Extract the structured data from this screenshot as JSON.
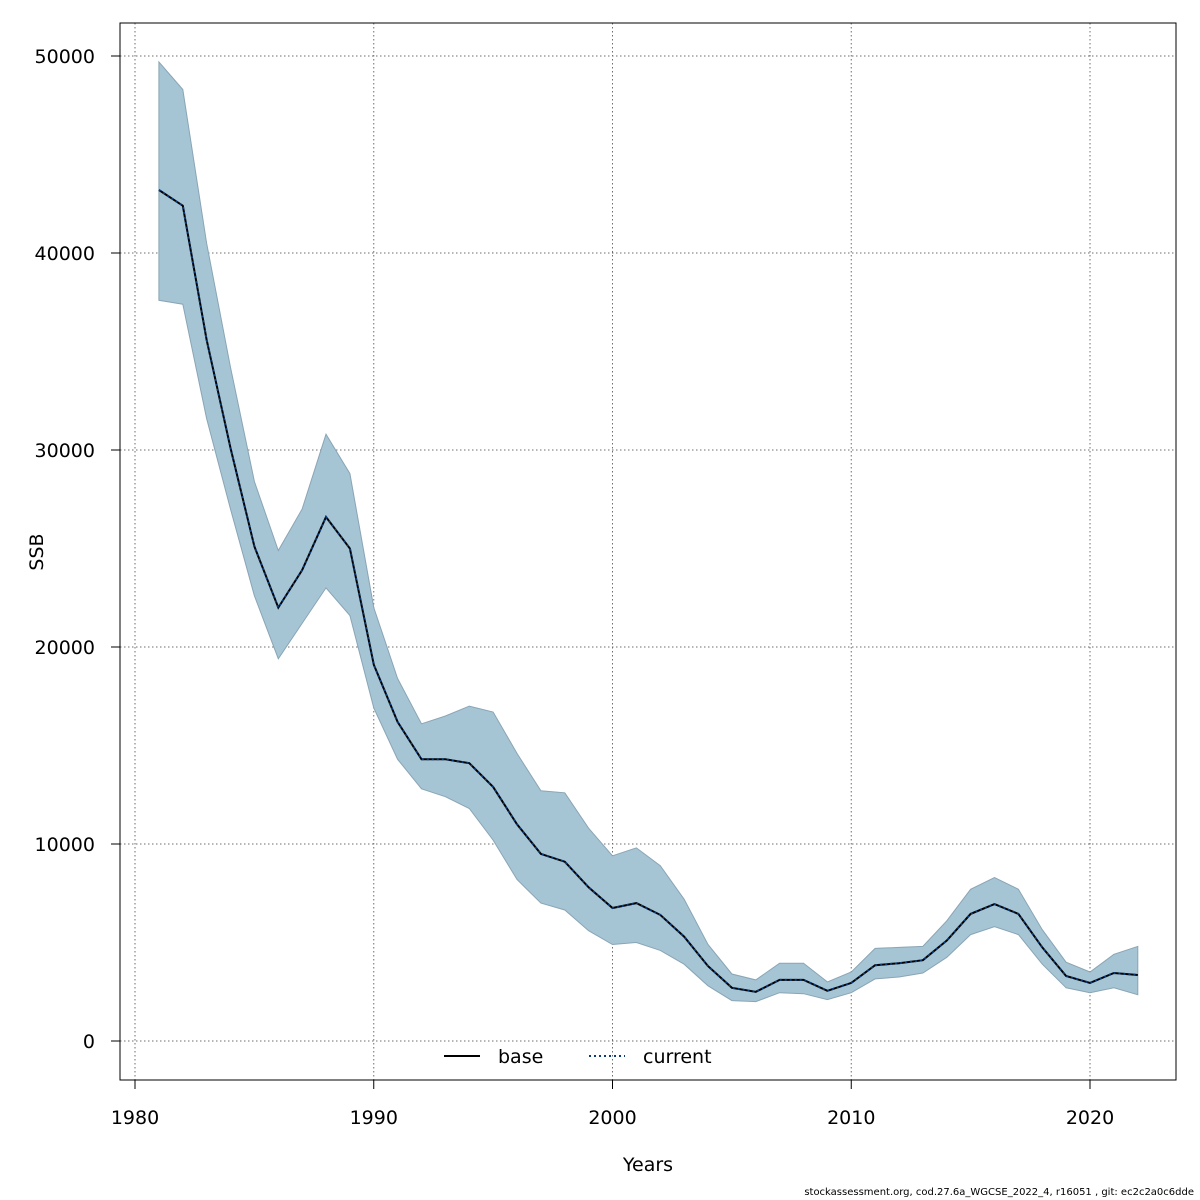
{
  "footer": "stockassessment.org, cod.27.6a_WGCSE_2022_4, r16051 , git: ec2c2a0c6dde",
  "chart_data": {
    "type": "line",
    "title": "",
    "xlabel": "Years",
    "ylabel": "SSB",
    "xlim": [
      1980,
      2023
    ],
    "ylim": [
      0,
      50000
    ],
    "xticks": [
      1980,
      1990,
      2000,
      2010,
      2020
    ],
    "yticks": [
      0,
      10000,
      20000,
      30000,
      40000,
      50000
    ],
    "grid": true,
    "legend_position": "bottom-center",
    "band_color": "#a5c4d4",
    "band_edge_color": "#8aa5b5",
    "x": [
      1981,
      1982,
      1983,
      1984,
      1985,
      1986,
      1987,
      1988,
      1989,
      1990,
      1991,
      1992,
      1993,
      1994,
      1995,
      1996,
      1997,
      1998,
      1999,
      2000,
      2001,
      2002,
      2003,
      2004,
      2005,
      2006,
      2007,
      2008,
      2009,
      2010,
      2011,
      2012,
      2013,
      2014,
      2015,
      2016,
      2017,
      2018,
      2019,
      2020,
      2021,
      2022
    ],
    "band": {
      "upper": [
        49700,
        48300,
        40500,
        34200,
        28400,
        24900,
        27000,
        30800,
        28800,
        22000,
        18400,
        16100,
        16500,
        17000,
        16700,
        14600,
        12700,
        12600,
        10800,
        9400,
        9800,
        8900,
        7200,
        4900,
        3400,
        3100,
        3950,
        3950,
        3000,
        3500,
        4700,
        4750,
        4800,
        6100,
        7700,
        8300,
        7700,
        5650,
        4000,
        3500,
        4400,
        4800
      ],
      "lower": [
        37600,
        37400,
        31600,
        27000,
        22600,
        19400,
        21200,
        23000,
        21600,
        16900,
        14300,
        12800,
        12400,
        11800,
        10200,
        8200,
        7000,
        6650,
        5600,
        4900,
        5000,
        4600,
        3900,
        2800,
        2050,
        2000,
        2450,
        2400,
        2100,
        2450,
        3150,
        3250,
        3450,
        4250,
        5400,
        5800,
        5400,
        3900,
        2700,
        2450,
        2700,
        2350
      ]
    },
    "series": [
      {
        "name": "base",
        "color": "#000000",
        "line_style": "solid",
        "values": [
          43200,
          42400,
          35600,
          30100,
          25100,
          22000,
          23900,
          26600,
          25000,
          19100,
          16200,
          14300,
          14300,
          14100,
          12900,
          11000,
          9500,
          9100,
          7800,
          6750,
          7000,
          6400,
          5300,
          3800,
          2700,
          2500,
          3100,
          3100,
          2550,
          2950,
          3850,
          3950,
          4100,
          5100,
          6450,
          6950,
          6450,
          4750,
          3300,
          2950,
          3450,
          3350
        ]
      },
      {
        "name": "current",
        "color": "#0b3c7a",
        "line_style": "dotted",
        "values": [
          43200,
          42400,
          35600,
          30100,
          25100,
          22000,
          23900,
          26600,
          25000,
          19100,
          16200,
          14300,
          14300,
          14100,
          12900,
          11000,
          9500,
          9100,
          7800,
          6750,
          7000,
          6400,
          5300,
          3800,
          2700,
          2500,
          3100,
          3100,
          2550,
          2950,
          3850,
          3950,
          4100,
          5100,
          6450,
          6950,
          6450,
          4750,
          3300,
          2950,
          3450,
          3350
        ]
      }
    ]
  }
}
